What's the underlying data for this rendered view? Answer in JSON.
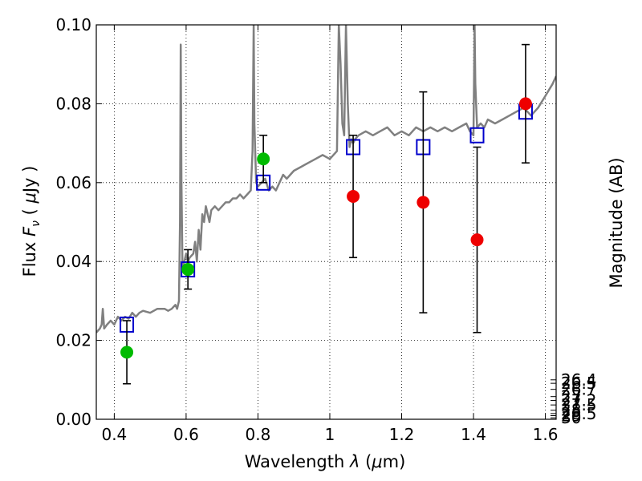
{
  "chart_data": {
    "type": "scatter",
    "title": "",
    "xlabel": "Wavelength λ (μm)",
    "ylabel": "Flux F_ν ( μJy )",
    "y2label": "Magnitude (AB)",
    "xlim": [
      0.35,
      1.63
    ],
    "ylim": [
      0.0,
      0.1
    ],
    "grid": true,
    "x_ticks": [
      0.4,
      0.6,
      0.8,
      1.0,
      1.2,
      1.4,
      1.6
    ],
    "x_tick_labels": [
      "0.4",
      "0.6",
      "0.8",
      "1",
      "1.2",
      "1.4",
      "1.6"
    ],
    "y_ticks": [
      0.0,
      0.02,
      0.04,
      0.06,
      0.08,
      0.1
    ],
    "y_tick_labels": [
      "0.00",
      "0.02",
      "0.04",
      "0.06",
      "0.08",
      "0.10"
    ],
    "y2_ticks": [
      "26.4",
      "26.5",
      "26.7",
      "27",
      "27.2",
      "27.5",
      "28",
      "28.5",
      "29",
      "30"
    ],
    "series": [
      {
        "kind": "line",
        "color": "#808080",
        "x": [
          0.35,
          0.36,
          0.365,
          0.368,
          0.372,
          0.38,
          0.39,
          0.4,
          0.41,
          0.42,
          0.43,
          0.44,
          0.45,
          0.46,
          0.47,
          0.48,
          0.5,
          0.52,
          0.54,
          0.55,
          0.56,
          0.57,
          0.575,
          0.58,
          0.583,
          0.585,
          0.587,
          0.59,
          0.595,
          0.6,
          0.605,
          0.61,
          0.62,
          0.625,
          0.63,
          0.635,
          0.64,
          0.645,
          0.65,
          0.655,
          0.66,
          0.665,
          0.67,
          0.68,
          0.69,
          0.7,
          0.71,
          0.72,
          0.73,
          0.74,
          0.75,
          0.76,
          0.77,
          0.78,
          0.785,
          0.788,
          0.79,
          0.795,
          0.8,
          0.81,
          0.82,
          0.83,
          0.84,
          0.85,
          0.86,
          0.87,
          0.88,
          0.89,
          0.9,
          0.92,
          0.94,
          0.96,
          0.98,
          1.0,
          1.02,
          1.025,
          1.03,
          1.035,
          1.04,
          1.045,
          1.05,
          1.055,
          1.06,
          1.065,
          1.07,
          1.08,
          1.1,
          1.12,
          1.14,
          1.16,
          1.18,
          1.2,
          1.22,
          1.24,
          1.26,
          1.28,
          1.3,
          1.32,
          1.34,
          1.36,
          1.38,
          1.39,
          1.4,
          1.403,
          1.405,
          1.41,
          1.42,
          1.43,
          1.44,
          1.46,
          1.48,
          1.5,
          1.52,
          1.54,
          1.56,
          1.58,
          1.6,
          1.62,
          1.63
        ],
        "y": [
          0.022,
          0.023,
          0.024,
          0.028,
          0.023,
          0.024,
          0.025,
          0.024,
          0.026,
          0.025,
          0.026,
          0.0255,
          0.027,
          0.026,
          0.027,
          0.0275,
          0.027,
          0.028,
          0.028,
          0.0275,
          0.028,
          0.029,
          0.028,
          0.03,
          0.05,
          0.095,
          0.06,
          0.038,
          0.04,
          0.042,
          0.04,
          0.041,
          0.042,
          0.045,
          0.04,
          0.048,
          0.043,
          0.052,
          0.05,
          0.054,
          0.052,
          0.05,
          0.053,
          0.054,
          0.053,
          0.054,
          0.055,
          0.055,
          0.056,
          0.056,
          0.057,
          0.056,
          0.057,
          0.058,
          0.068,
          0.1,
          0.075,
          0.06,
          0.059,
          0.06,
          0.061,
          0.058,
          0.059,
          0.058,
          0.06,
          0.062,
          0.061,
          0.062,
          0.063,
          0.064,
          0.065,
          0.066,
          0.067,
          0.066,
          0.068,
          0.1,
          0.09,
          0.075,
          0.072,
          0.1,
          0.08,
          0.069,
          0.071,
          0.07,
          0.071,
          0.072,
          0.073,
          0.072,
          0.073,
          0.074,
          0.072,
          0.073,
          0.072,
          0.074,
          0.073,
          0.074,
          0.073,
          0.074,
          0.073,
          0.074,
          0.075,
          0.073,
          0.072,
          0.1,
          0.085,
          0.074,
          0.075,
          0.074,
          0.076,
          0.075,
          0.076,
          0.077,
          0.078,
          0.079,
          0.077,
          0.079,
          0.082,
          0.085,
          0.087
        ]
      },
      {
        "kind": "open-square",
        "color": "#0000cc",
        "x": [
          0.435,
          0.605,
          0.815,
          1.065,
          1.26,
          1.41,
          1.545
        ],
        "y": [
          0.024,
          0.038,
          0.06,
          0.069,
          0.069,
          0.072,
          0.078
        ]
      },
      {
        "kind": "filled-circle",
        "color": "#00bb00",
        "x": [
          0.435,
          0.605,
          0.815
        ],
        "y": [
          0.017,
          0.038,
          0.066
        ],
        "err_low": [
          0.008,
          0.005,
          0.006
        ],
        "err_high": [
          0.008,
          0.005,
          0.006
        ]
      },
      {
        "kind": "filled-circle",
        "color": "#ee0000",
        "x": [
          1.065,
          1.26,
          1.41,
          1.545
        ],
        "y": [
          0.0565,
          0.055,
          0.0455,
          0.08
        ],
        "err_low": [
          0.0155,
          0.028,
          0.0235,
          0.015
        ],
        "err_high": [
          0.0155,
          0.028,
          0.0235,
          0.015
        ]
      }
    ]
  }
}
